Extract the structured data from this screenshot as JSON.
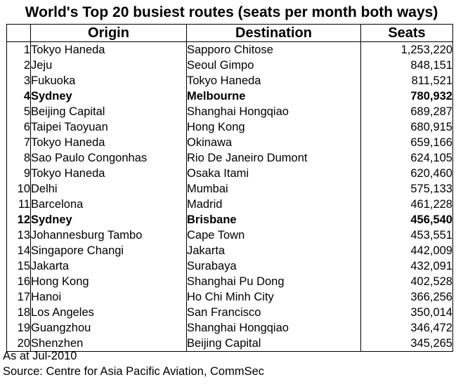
{
  "title": "World's Top 20 busiest routes (seats per month both ways)",
  "columns": {
    "rank": "",
    "origin": "Origin",
    "destination": "Destination",
    "seats": "Seats"
  },
  "rows": [
    {
      "rank": "1",
      "origin": "Tokyo Haneda",
      "destination": "Sapporo Chitose",
      "seats": "1,253,220",
      "bold": false
    },
    {
      "rank": "2",
      "origin": "Jeju",
      "destination": "Seoul Gimpo",
      "seats": "848,151",
      "bold": false
    },
    {
      "rank": "3",
      "origin": "Fukuoka",
      "destination": "Tokyo Haneda",
      "seats": "811,521",
      "bold": false
    },
    {
      "rank": "4",
      "origin": "Sydney",
      "destination": "Melbourne",
      "seats": "780,932",
      "bold": true
    },
    {
      "rank": "5",
      "origin": "Beijing Capital",
      "destination": "Shanghai  Hongqiao",
      "seats": "689,287",
      "bold": false
    },
    {
      "rank": "6",
      "origin": "Taipei Taoyuan",
      "destination": "Hong Kong",
      "seats": "680,915",
      "bold": false
    },
    {
      "rank": "7",
      "origin": "Tokyo Haneda",
      "destination": "Okinawa",
      "seats": "659,166",
      "bold": false
    },
    {
      "rank": "8",
      "origin": "Sao Paulo Congonhas",
      "destination": "Rio De Janeiro Dumont",
      "seats": "624,105",
      "bold": false
    },
    {
      "rank": "9",
      "origin": "Tokyo Haneda",
      "destination": "Osaka Itami",
      "seats": "620,460",
      "bold": false
    },
    {
      "rank": "10",
      "origin": "Delhi",
      "destination": "Mumbai",
      "seats": "575,133",
      "bold": false
    },
    {
      "rank": "11",
      "origin": "Barcelona",
      "destination": "Madrid",
      "seats": "461,228",
      "bold": false
    },
    {
      "rank": "12",
      "origin": "Sydney",
      "destination": "Brisbane",
      "seats": "456,540",
      "bold": true
    },
    {
      "rank": "13",
      "origin": "Johannesburg Tambo",
      "destination": "Cape Town",
      "seats": "453,551",
      "bold": false
    },
    {
      "rank": "14",
      "origin": "Singapore Changi",
      "destination": "Jakarta",
      "seats": "442,009",
      "bold": false
    },
    {
      "rank": "15",
      "origin": "Jakarta",
      "destination": "Surabaya",
      "seats": "432,091",
      "bold": false
    },
    {
      "rank": "16",
      "origin": "Hong Kong",
      "destination": "Shanghai  Pu Dong",
      "seats": "402,528",
      "bold": false
    },
    {
      "rank": "17",
      "origin": "Hanoi",
      "destination": "Ho Chi Minh City",
      "seats": "366,256",
      "bold": false
    },
    {
      "rank": "18",
      "origin": "Los Angeles",
      "destination": "San Francisco",
      "seats": "350,014",
      "bold": false
    },
    {
      "rank": "19",
      "origin": "Guangzhou",
      "destination": "Shanghai  Hongqiao",
      "seats": "346,472",
      "bold": false
    },
    {
      "rank": "20",
      "origin": "Shenzhen",
      "destination": "Beijing Capital",
      "seats": "345,265",
      "bold": false
    }
  ],
  "footnote": "As at Jul-2010",
  "source": "Source: Centre for Asia Pacific Aviation, CommSec"
}
